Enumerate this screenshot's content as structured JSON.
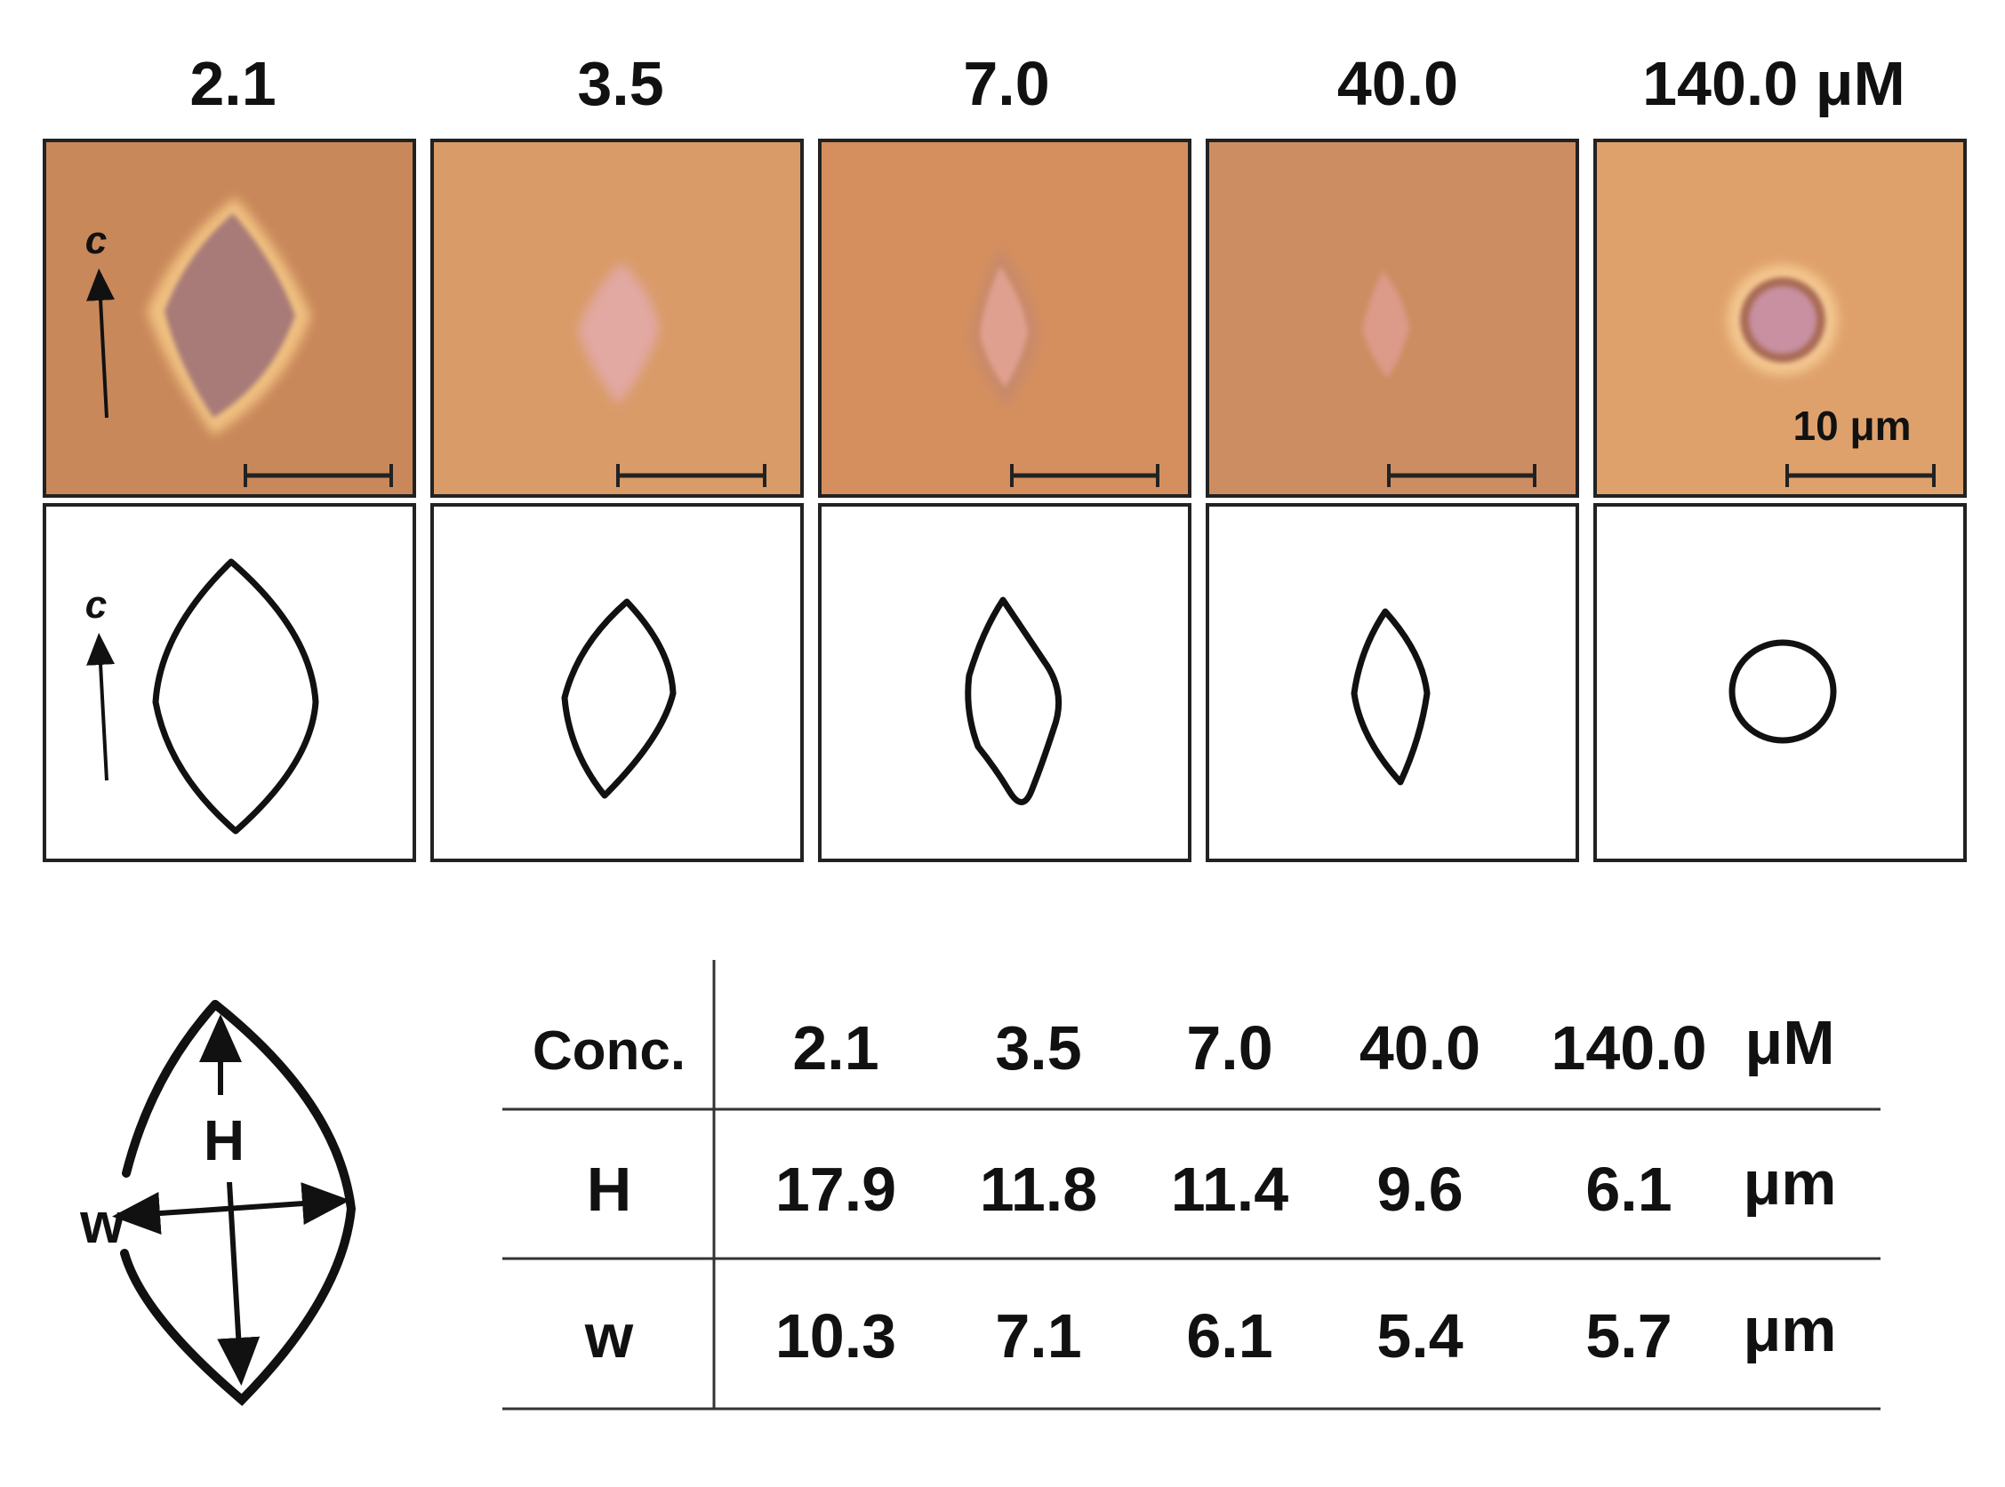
{
  "panels": [
    {
      "conc": "2.1",
      "scale_bar": ""
    },
    {
      "conc": "3.5",
      "scale_bar": ""
    },
    {
      "conc": "7.0",
      "scale_bar": ""
    },
    {
      "conc": "40.0",
      "scale_bar": ""
    },
    {
      "conc": "140.0 μM",
      "scale_bar": "10 μm"
    }
  ],
  "axis_label": "c",
  "photo_colors": [
    "#c9885a",
    "#d99b68",
    "#d58f5e",
    "#cd8d62",
    "#dfa16c"
  ],
  "diagram": {
    "height_label": "H",
    "width_label": "w"
  },
  "table": {
    "header": [
      "Conc.",
      "2.1",
      "3.5",
      "7.0",
      "40.0",
      "140.0",
      "μM"
    ],
    "rows": [
      [
        "H",
        "17.9",
        "11.8",
        "11.4",
        "9.6",
        "6.1",
        "μm"
      ],
      [
        "w",
        "10.3",
        "7.1",
        "6.1",
        "5.4",
        "5.7",
        "μm"
      ]
    ]
  }
}
